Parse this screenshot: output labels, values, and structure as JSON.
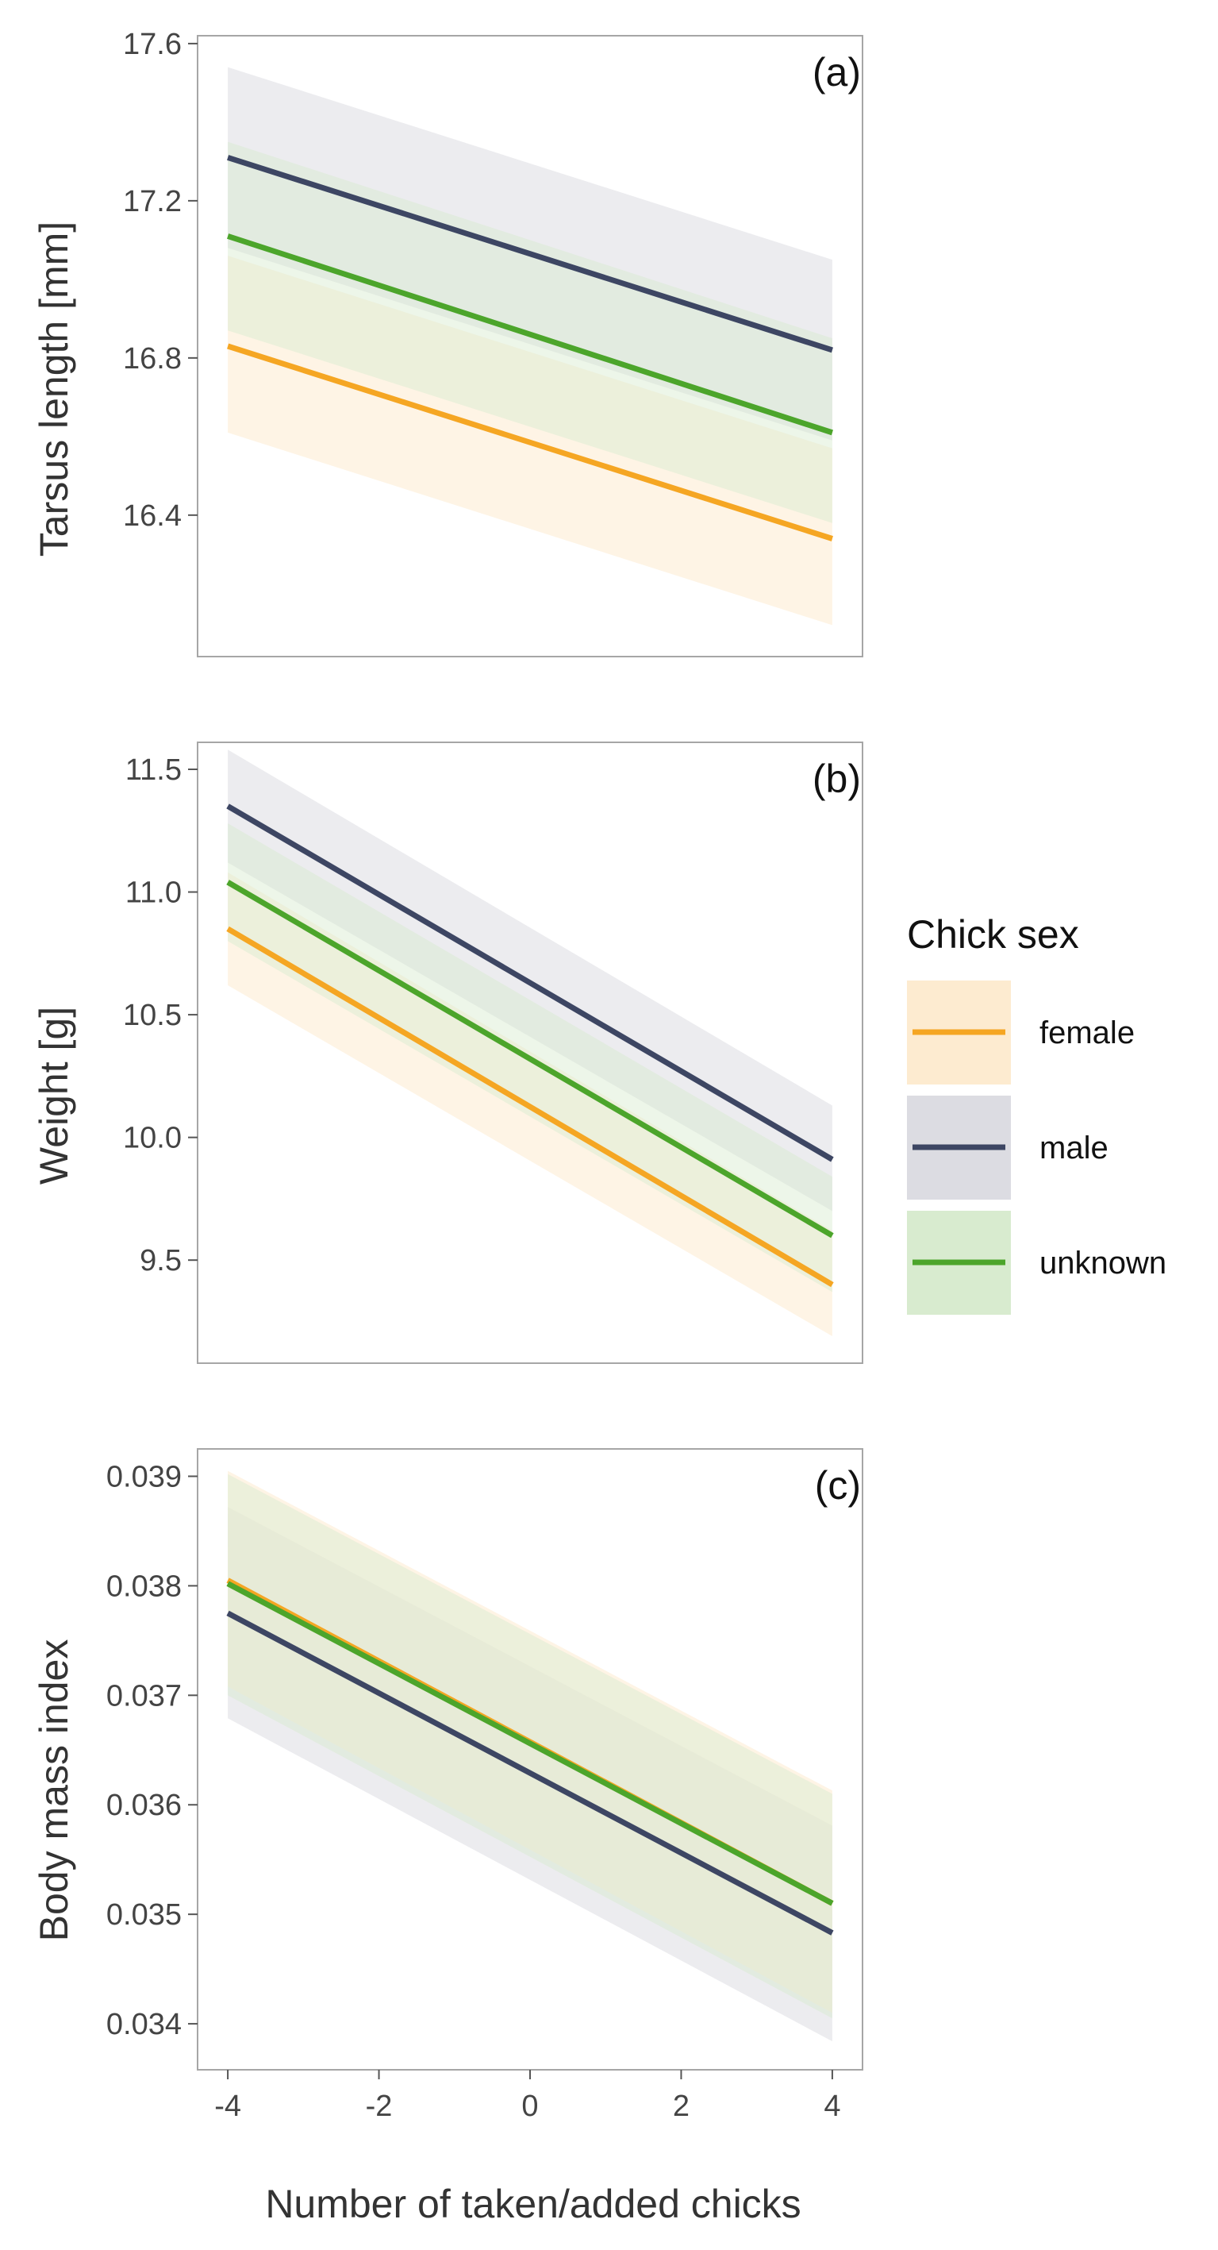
{
  "chart_data": [
    {
      "type": "line",
      "tag": "(a)",
      "title": "",
      "xlabel": "",
      "ylabel": "Tarsus length [mm]",
      "xlim": [
        -4.4,
        4.4
      ],
      "ylim": [
        16.04,
        17.62
      ],
      "yticks": [
        16.4,
        16.8,
        17.2,
        17.6
      ],
      "ytick_labels": [
        "16.4",
        "16.8",
        "17.2",
        "17.6"
      ],
      "x": [
        -4,
        4
      ],
      "series": [
        {
          "name": "male",
          "color": "#3d4663",
          "values": [
            17.31,
            16.82
          ],
          "lower": [
            17.08,
            16.59
          ],
          "upper": [
            17.54,
            17.05
          ]
        },
        {
          "name": "female",
          "color": "#f5a623",
          "values": [
            16.83,
            16.34
          ],
          "lower": [
            16.61,
            16.12
          ],
          "upper": [
            17.06,
            16.57
          ]
        },
        {
          "name": "unknown",
          "color": "#4ca52b",
          "values": [
            17.11,
            16.61
          ],
          "lower": [
            16.87,
            16.38
          ],
          "upper": [
            17.35,
            16.85
          ]
        }
      ]
    },
    {
      "type": "line",
      "tag": "(b)",
      "title": "",
      "xlabel": "",
      "ylabel": "Weight [g]",
      "xlim": [
        -4.4,
        4.4
      ],
      "ylim": [
        9.08,
        11.61
      ],
      "yticks": [
        9.5,
        10.0,
        10.5,
        11.0,
        11.5
      ],
      "ytick_labels": [
        "9.5",
        "10.0",
        "10.5",
        "11.0",
        "11.5"
      ],
      "x": [
        -4,
        4
      ],
      "series": [
        {
          "name": "male",
          "color": "#3d4663",
          "values": [
            11.35,
            9.91
          ],
          "lower": [
            11.12,
            9.7
          ],
          "upper": [
            11.58,
            10.13
          ]
        },
        {
          "name": "female",
          "color": "#f5a623",
          "values": [
            10.85,
            9.4
          ],
          "lower": [
            10.62,
            9.19
          ],
          "upper": [
            11.08,
            9.62
          ]
        },
        {
          "name": "unknown",
          "color": "#4ca52b",
          "values": [
            11.04,
            9.6
          ],
          "lower": [
            10.8,
            9.37
          ],
          "upper": [
            11.28,
            9.84
          ]
        }
      ]
    },
    {
      "type": "line",
      "tag": "(c)",
      "title": "",
      "xlabel": "Number of taken/added chicks",
      "ylabel": "Body mass index",
      "xlim": [
        -4.4,
        4.4
      ],
      "ylim": [
        0.03358,
        0.03925
      ],
      "yticks": [
        0.034,
        0.035,
        0.036,
        0.037,
        0.038,
        0.039
      ],
      "ytick_labels": [
        "0.034",
        "0.035",
        "0.036",
        "0.037",
        "0.038",
        "0.039"
      ],
      "xticks": [
        -4,
        -2,
        0,
        2,
        4
      ],
      "xtick_labels": [
        "-4",
        "-2",
        "0",
        "2",
        "4"
      ],
      "x": [
        -4,
        4
      ],
      "series": [
        {
          "name": "male",
          "color": "#3d4663",
          "values": [
            0.03775,
            0.03483
          ],
          "lower": [
            0.03679,
            0.03384
          ],
          "upper": [
            0.03872,
            0.03581
          ]
        },
        {
          "name": "female",
          "color": "#f5a623",
          "values": [
            0.03805,
            0.0351
          ],
          "lower": [
            0.03708,
            0.0341
          ],
          "upper": [
            0.03905,
            0.03613
          ]
        },
        {
          "name": "unknown",
          "color": "#4ca52b",
          "values": [
            0.03802,
            0.0351
          ],
          "lower": [
            0.037,
            0.03405
          ],
          "upper": [
            0.03902,
            0.0361
          ]
        }
      ]
    }
  ],
  "legend": {
    "title": "Chick sex",
    "placement": "right",
    "items": [
      {
        "label": "female",
        "line_color": "#f5a623",
        "fill_color": "#fdebd0"
      },
      {
        "label": "male",
        "line_color": "#3d4663",
        "fill_color": "#dcdce2"
      },
      {
        "label": "unknown",
        "line_color": "#4ca52b",
        "fill_color": "#d8ebcf"
      }
    ]
  }
}
